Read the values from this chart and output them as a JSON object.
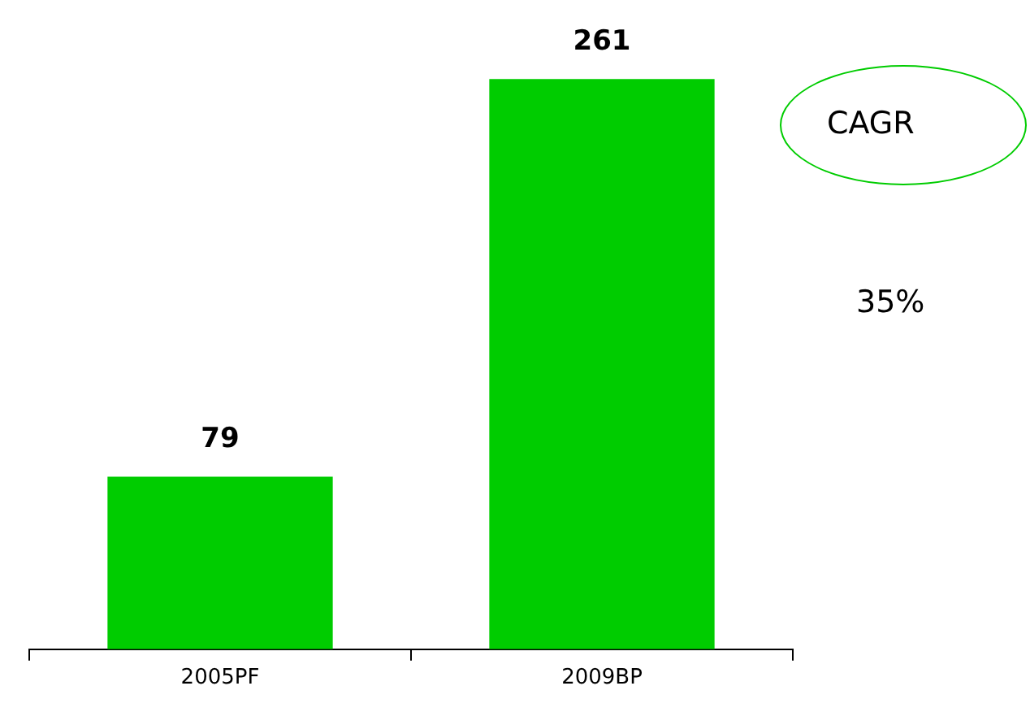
{
  "chart_data": {
    "type": "bar",
    "categories": [
      "2005PF",
      "2009BP"
    ],
    "values": [
      79,
      261
    ],
    "color": "#00cc00",
    "data_labels": true,
    "annotations": [
      "CAGR",
      "35%"
    ]
  }
}
